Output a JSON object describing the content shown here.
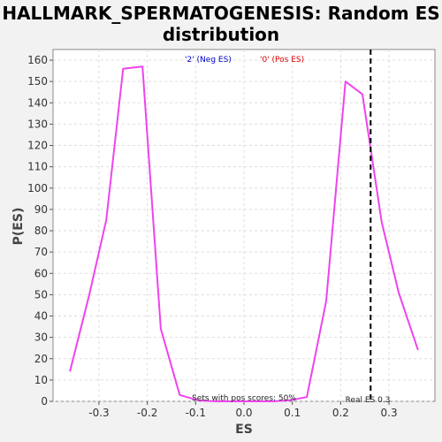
{
  "chart_data": {
    "type": "line",
    "title_line1": "HALLMARK_SPERMATOGENESIS: Random ES",
    "title_line2": "distribution",
    "xlabel": "ES",
    "ylabel": "P(ES)",
    "xlim": [
      -0.395,
      0.395
    ],
    "ylim": [
      0,
      165
    ],
    "xticks": [
      -0.3,
      -0.2,
      -0.1,
      0.0,
      0.1,
      0.2,
      0.3
    ],
    "xtick_labels": [
      "-0.3",
      "-0.2",
      "-0.1",
      "0.0",
      "0.1",
      "0.2",
      "0.3"
    ],
    "yticks": [
      0,
      10,
      20,
      30,
      40,
      50,
      60,
      70,
      80,
      90,
      100,
      110,
      120,
      130,
      140,
      150,
      160
    ],
    "ytick_labels": [
      "0",
      "10",
      "20",
      "30",
      "40",
      "50",
      "60",
      "70",
      "80",
      "90",
      "100",
      "110",
      "120",
      "130",
      "140",
      "150",
      "160"
    ],
    "grid": true,
    "series": [
      {
        "color": "#ee44ee",
        "x": [
          -0.36,
          -0.32,
          -0.285,
          -0.25,
          -0.21,
          -0.172,
          -0.133,
          -0.095,
          -0.06,
          0.0,
          0.06,
          0.095,
          0.13,
          0.17,
          0.21,
          0.245,
          0.285,
          0.32,
          0.36
        ],
        "y": [
          14,
          50,
          85,
          156,
          157,
          34,
          3,
          0.5,
          0,
          0,
          0,
          0.5,
          2,
          47,
          150,
          144,
          84,
          51,
          24
        ]
      }
    ],
    "legend": [
      {
        "label": "'2' (Neg ES)",
        "color": "#0000cc"
      },
      {
        "label": "'0' (Pos ES)",
        "color": "#dd0000"
      }
    ],
    "real_es": 0.262,
    "real_es_label": "Real ES 0.3",
    "pos_scores_label": "Sets with pos scores: 50%"
  }
}
